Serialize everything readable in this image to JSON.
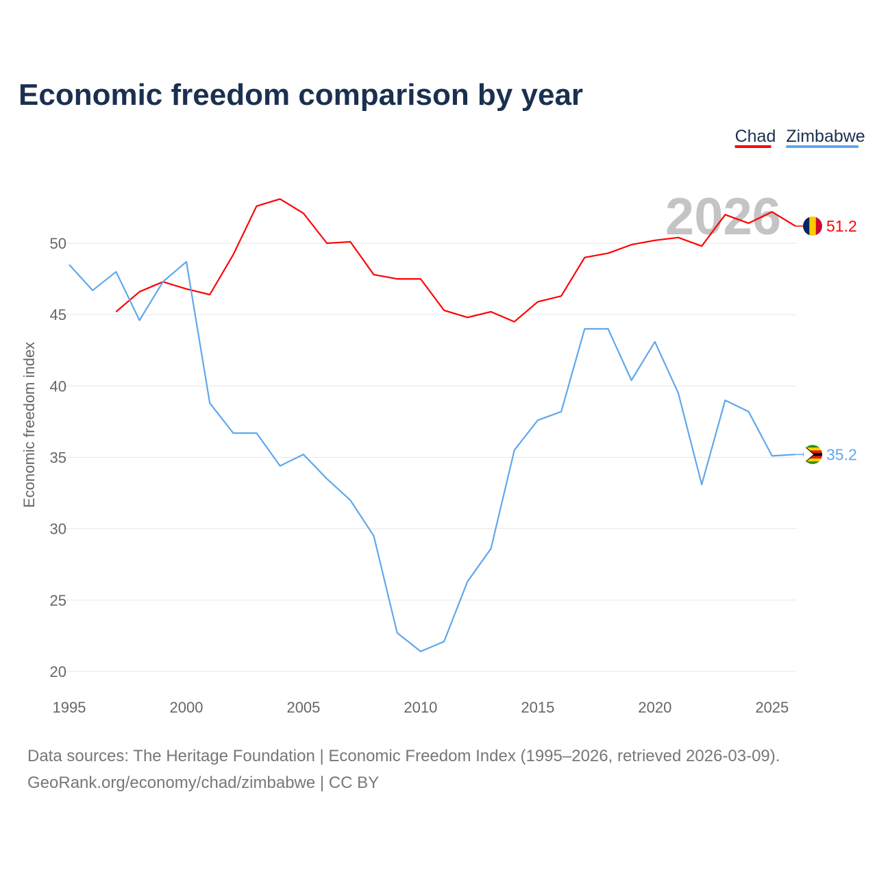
{
  "chart_data": {
    "type": "line",
    "title": "Economic freedom comparison by year",
    "xlabel": "",
    "ylabel": "Economic freedom index",
    "xlim": [
      1995,
      2026
    ],
    "ylim": [
      20,
      53.5
    ],
    "xticks": [
      1995,
      2000,
      2005,
      2010,
      2015,
      2020,
      2025
    ],
    "yticks": [
      20,
      25,
      30,
      35,
      40,
      45,
      50
    ],
    "grid": true,
    "legend_position": "top-right",
    "watermark_year": "2026",
    "series": [
      {
        "name": "Chad",
        "color": "#ff0000",
        "end_label": "51.2",
        "x": [
          1997,
          1998,
          1999,
          2000,
          2001,
          2002,
          2003,
          2004,
          2005,
          2006,
          2007,
          2008,
          2009,
          2010,
          2011,
          2012,
          2013,
          2014,
          2015,
          2016,
          2017,
          2018,
          2019,
          2020,
          2021,
          2022,
          2023,
          2024,
          2025,
          2026
        ],
        "values": [
          45.2,
          46.6,
          47.3,
          46.8,
          46.4,
          49.2,
          52.6,
          53.1,
          52.1,
          50.0,
          50.1,
          47.8,
          47.5,
          47.5,
          45.3,
          44.8,
          45.2,
          44.5,
          45.9,
          46.3,
          49.0,
          49.3,
          49.9,
          50.2,
          50.4,
          49.8,
          52.0,
          51.4,
          52.2,
          51.2
        ]
      },
      {
        "name": "Zimbabwe",
        "color": "#5ea8ec",
        "end_label": "35.2",
        "x": [
          1995,
          1996,
          1997,
          1998,
          1999,
          2000,
          2001,
          2002,
          2003,
          2004,
          2005,
          2006,
          2007,
          2008,
          2009,
          2010,
          2011,
          2012,
          2013,
          2014,
          2015,
          2016,
          2017,
          2018,
          2019,
          2020,
          2021,
          2022,
          2023,
          2024,
          2025,
          2026
        ],
        "values": [
          48.5,
          46.7,
          48.0,
          44.6,
          47.3,
          48.7,
          38.8,
          36.7,
          36.7,
          34.4,
          35.2,
          33.5,
          32.0,
          29.5,
          22.7,
          21.4,
          22.1,
          26.3,
          28.6,
          35.5,
          37.6,
          38.2,
          44.0,
          44.0,
          40.4,
          43.1,
          39.5,
          33.1,
          39.0,
          38.2,
          35.1,
          35.2
        ]
      }
    ],
    "footer": {
      "line1": "Data sources: The Heritage Foundation | Economic Freedom Index (1995–2026, retrieved 2026-03-09).",
      "line2": "GeoRank.org/economy/chad/zimbabwe | CC BY"
    }
  }
}
